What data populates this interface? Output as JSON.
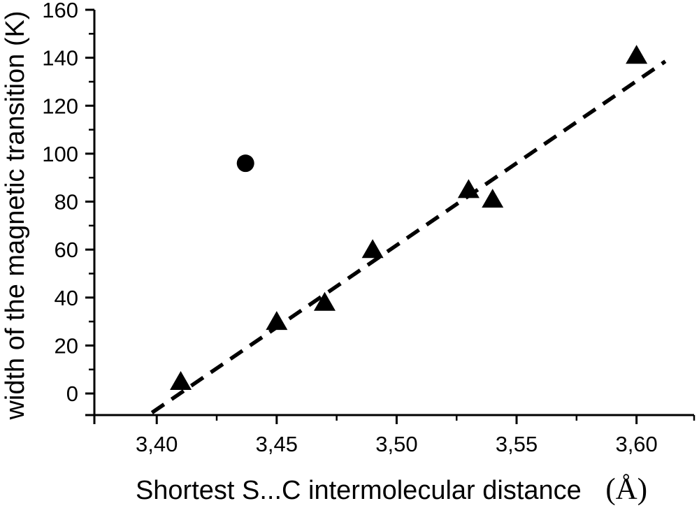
{
  "chart_data": {
    "type": "scatter",
    "title": "",
    "xlabel": "Shortest S...C intermolecular distance",
    "xlabel_unit": "(Å)",
    "ylabel": "width of the magnetic transition (K)",
    "xlim": [
      3.374,
      3.624
    ],
    "ylim": [
      -9,
      160
    ],
    "grid": false,
    "legend": false,
    "x_major_ticks": [
      3.4,
      3.45,
      3.5,
      3.55,
      3.6
    ],
    "x_tick_labels": [
      "3,40",
      "3,45",
      "3,50",
      "3,55",
      "3,60"
    ],
    "x_minor_ticks": [
      3.425,
      3.475,
      3.525,
      3.575
    ],
    "y_major_ticks": [
      0,
      20,
      40,
      60,
      80,
      100,
      120,
      140,
      160
    ],
    "y_tick_labels": [
      "0",
      "20",
      "40",
      "60",
      "80",
      "100",
      "120",
      "140",
      "160"
    ],
    "y_minor_ticks": [
      10,
      30,
      50,
      70,
      90,
      110,
      130,
      150
    ],
    "series": [
      {
        "name": "triangle-points",
        "marker": "triangle",
        "points": [
          [
            3.41,
            5
          ],
          [
            3.45,
            30
          ],
          [
            3.47,
            38
          ],
          [
            3.49,
            60
          ],
          [
            3.53,
            85
          ],
          [
            3.54,
            81
          ],
          [
            3.6,
            141
          ]
        ]
      },
      {
        "name": "circle-outlier",
        "marker": "circle",
        "points": [
          [
            3.437,
            96
          ]
        ]
      }
    ],
    "trend_line": {
      "style": "dashed",
      "x": [
        3.398,
        3.612
      ],
      "y": [
        -8,
        138.5
      ]
    },
    "colors": {
      "foreground": "#000000",
      "background": "#ffffff"
    }
  }
}
